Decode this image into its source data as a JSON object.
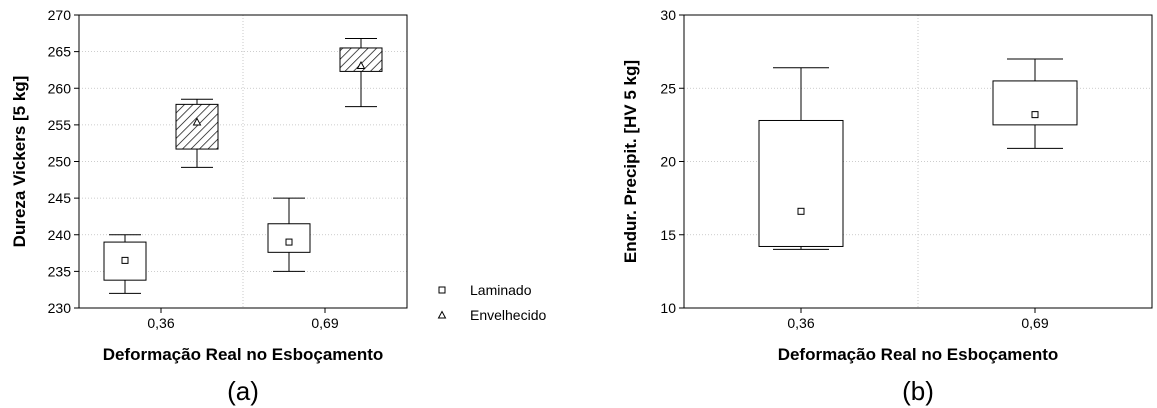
{
  "chart_data": [
    {
      "type": "box",
      "panel_label": "(a)",
      "xlabel": "Deformação Real no Esboçamento",
      "ylabel": "Dureza Vickers [5 kg]",
      "categories": [
        "0,36",
        "0,69"
      ],
      "ylim": [
        230,
        270
      ],
      "yticks": [
        "230",
        "235",
        "240",
        "245",
        "250",
        "255",
        "260",
        "265",
        "270"
      ],
      "grid": true,
      "legend_placement": "outside-right-bottom",
      "series": [
        {
          "name": "Laminado",
          "marker": "square",
          "fill": "none",
          "boxes": [
            {
              "category": "0,36",
              "whisker_low": 232,
              "q1": 233.8,
              "center": 236.5,
              "q3": 239,
              "whisker_high": 240
            },
            {
              "category": "0,69",
              "whisker_low": 235,
              "q1": 237.6,
              "center": 239,
              "q3": 241.5,
              "whisker_high": 245
            }
          ]
        },
        {
          "name": "Envelhecido",
          "marker": "triangle",
          "fill": "hatched",
          "boxes": [
            {
              "category": "0,36",
              "whisker_low": 249.2,
              "q1": 251.7,
              "center": 255.4,
              "q3": 257.8,
              "whisker_high": 258.5
            },
            {
              "category": "0,69",
              "whisker_low": 257.5,
              "q1": 262.3,
              "center": 263.1,
              "q3": 265.5,
              "whisker_high": 266.8
            }
          ]
        }
      ]
    },
    {
      "type": "box",
      "panel_label": "(b)",
      "xlabel": "Deformação Real no Esboçamento",
      "ylabel": "Endur. Precipit. [HV 5 kg]",
      "categories": [
        "0,36",
        "0,69"
      ],
      "ylim": [
        10,
        30
      ],
      "yticks": [
        "10",
        "15",
        "20",
        "25",
        "30"
      ],
      "grid": true,
      "series": [
        {
          "marker": "square",
          "fill": "none",
          "boxes": [
            {
              "category": "0,36",
              "whisker_low": 14,
              "q1": 14.2,
              "center": 16.6,
              "q3": 22.8,
              "whisker_high": 26.4
            },
            {
              "category": "0,69",
              "whisker_low": 20.9,
              "q1": 22.5,
              "center": 23.2,
              "q3": 25.5,
              "whisker_high": 27
            }
          ]
        }
      ]
    }
  ]
}
